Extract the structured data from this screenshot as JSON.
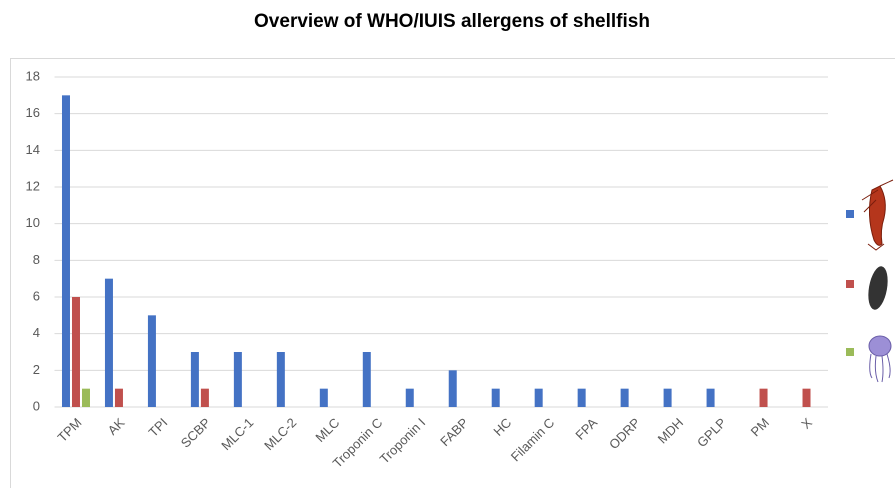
{
  "chart_data": {
    "type": "bar",
    "title": "Overview of WHO/IUIS allergens of shellfish",
    "categories": [
      "TPM",
      "AK",
      "TPI",
      "SCBP",
      "MLC-1",
      "MLC-2",
      "MLC",
      "Troponin C",
      "Troponin I",
      "FABP",
      "HC",
      "Filamin C",
      "FPA",
      "ODRP",
      "MDH",
      "GPLP",
      "PM",
      "X"
    ],
    "series": [
      {
        "color": "#4472c4",
        "values": [
          17,
          7,
          5,
          3,
          3,
          3,
          1,
          3,
          1,
          2,
          1,
          1,
          1,
          1,
          1,
          1,
          0,
          0
        ]
      },
      {
        "color": "#c0504d",
        "values": [
          6,
          1,
          0,
          1,
          0,
          0,
          0,
          0,
          0,
          0,
          0,
          0,
          0,
          0,
          0,
          0,
          1,
          1
        ]
      },
      {
        "color": "#9bbb59",
        "values": [
          1,
          0,
          0,
          0,
          0,
          0,
          0,
          0,
          0,
          0,
          0,
          0,
          0,
          0,
          0,
          0,
          0,
          0
        ]
      }
    ],
    "ylim": [
      0,
      18
    ],
    "yticks": [
      0,
      2,
      4,
      6,
      8,
      10,
      12,
      14,
      16,
      18
    ],
    "grid": true,
    "legend": "right"
  }
}
